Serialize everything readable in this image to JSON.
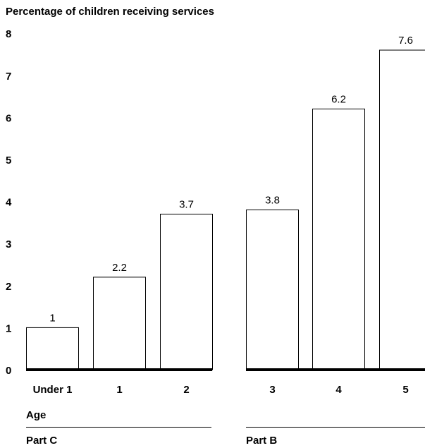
{
  "chart_data": {
    "type": "bar",
    "ylabel": "Percentage of children receiving services",
    "xlabel": "Age",
    "ylim": [
      0,
      8
    ],
    "yticks": [
      "0",
      "1",
      "2",
      "3",
      "4",
      "5",
      "6",
      "7",
      "8"
    ],
    "categories": [
      "Under 1",
      "1",
      "2",
      "3",
      "4",
      "5"
    ],
    "values": [
      1,
      2.2,
      3.7,
      3.8,
      6.2,
      7.6
    ],
    "data_labels": [
      "1",
      "2.2",
      "3.7",
      "3.8",
      "6.2",
      "7.6"
    ],
    "groups": [
      {
        "name": "Part C",
        "categories": [
          "Under 1",
          "1",
          "2"
        ]
      },
      {
        "name": "Part B",
        "categories": [
          "3",
          "4",
          "5"
        ]
      }
    ],
    "bar_fill": "#ffffff",
    "bar_stroke": "#000000",
    "baseline_color": "#000000",
    "grid": false
  }
}
